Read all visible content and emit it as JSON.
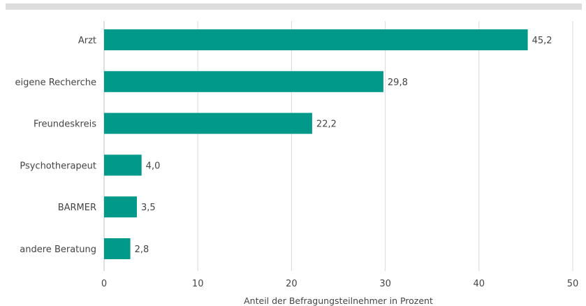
{
  "chart_data": {
    "type": "bar",
    "orientation": "horizontal",
    "categories": [
      "Arzt",
      "eigene Recherche",
      "Freundeskreis",
      "Psychotherapeut",
      "BARMER",
      "andere Beratung"
    ],
    "values": [
      45.2,
      29.8,
      22.2,
      4.0,
      3.5,
      2.8
    ],
    "value_labels": [
      "45,2",
      "29,8",
      "22,2",
      "4,0",
      "3,5",
      "2,8"
    ],
    "xlabel": "Anteil der Befragungsteilnehmer in Prozent",
    "ylabel": "",
    "xlim": [
      0,
      50
    ],
    "xticks": [
      0,
      10,
      20,
      30,
      40,
      50
    ],
    "xtick_labels": [
      "0",
      "10",
      "20",
      "30",
      "40",
      "50"
    ],
    "grid": "vertical",
    "legend": "none",
    "colors": {
      "bar": "#00998a",
      "grid": "#d9d9d9",
      "text": "#444444",
      "top_band": "#dddddd"
    }
  }
}
